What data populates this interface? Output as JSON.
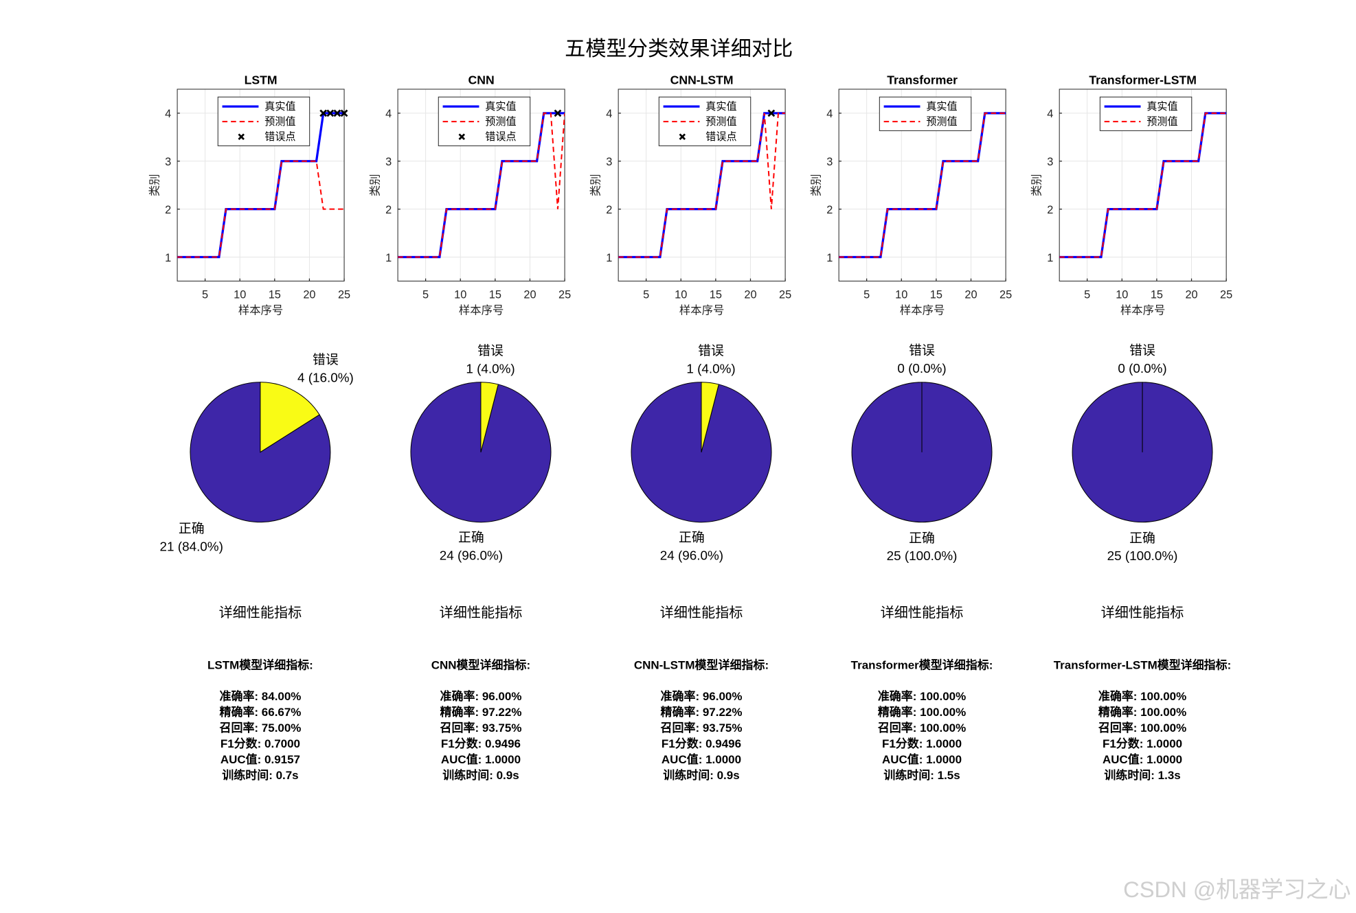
{
  "figure_title": "五模型分类效果详细对比",
  "watermark": "CSDN @机器学习之心",
  "chart_data": [
    {
      "type": "line",
      "title": "LSTM",
      "xlabel": "样本序号",
      "ylabel": "类别",
      "x": [
        1,
        2,
        3,
        4,
        5,
        6,
        7,
        8,
        9,
        10,
        11,
        12,
        13,
        14,
        15,
        16,
        17,
        18,
        19,
        20,
        21,
        22,
        23,
        24,
        25
      ],
      "xlim": [
        1,
        25
      ],
      "xticks": [
        5,
        10,
        15,
        20,
        25
      ],
      "ylim": [
        0.5,
        4.5
      ],
      "yticks": [
        1,
        2,
        3,
        4
      ],
      "grid": true,
      "legend": "upper right",
      "series": [
        {
          "name": "真实值",
          "color": "#0000ff",
          "line_style": "solid",
          "values": [
            1,
            1,
            1,
            1,
            1,
            1,
            1,
            2,
            2,
            2,
            2,
            2,
            2,
            2,
            2,
            3,
            3,
            3,
            3,
            3,
            3,
            4,
            4,
            4,
            4
          ]
        },
        {
          "name": "预测值",
          "color": "#ff0000",
          "line_style": "dashed",
          "values": [
            1,
            1,
            1,
            1,
            1,
            1,
            1,
            2,
            2,
            2,
            2,
            2,
            2,
            2,
            2,
            3,
            3,
            3,
            3,
            3,
            3,
            2,
            2,
            2,
            2
          ]
        },
        {
          "name": "错误点",
          "color": "#000000",
          "marker": "x",
          "values": [
            null,
            null,
            null,
            null,
            null,
            null,
            null,
            null,
            null,
            null,
            null,
            null,
            null,
            null,
            null,
            null,
            null,
            null,
            null,
            null,
            null,
            4,
            4,
            4,
            4
          ]
        }
      ]
    },
    {
      "type": "line",
      "title": "CNN",
      "xlabel": "样本序号",
      "ylabel": "类别",
      "x": [
        1,
        2,
        3,
        4,
        5,
        6,
        7,
        8,
        9,
        10,
        11,
        12,
        13,
        14,
        15,
        16,
        17,
        18,
        19,
        20,
        21,
        22,
        23,
        24,
        25
      ],
      "xlim": [
        1,
        25
      ],
      "xticks": [
        5,
        10,
        15,
        20,
        25
      ],
      "ylim": [
        0.5,
        4.5
      ],
      "yticks": [
        1,
        2,
        3,
        4
      ],
      "grid": true,
      "legend": "upper right",
      "series": [
        {
          "name": "真实值",
          "color": "#0000ff",
          "line_style": "solid",
          "values": [
            1,
            1,
            1,
            1,
            1,
            1,
            1,
            2,
            2,
            2,
            2,
            2,
            2,
            2,
            2,
            3,
            3,
            3,
            3,
            3,
            3,
            4,
            4,
            4,
            4
          ]
        },
        {
          "name": "预测值",
          "color": "#ff0000",
          "line_style": "dashed",
          "values": [
            1,
            1,
            1,
            1,
            1,
            1,
            1,
            2,
            2,
            2,
            2,
            2,
            2,
            2,
            2,
            3,
            3,
            3,
            3,
            3,
            3,
            4,
            4,
            2,
            4
          ]
        },
        {
          "name": "错误点",
          "color": "#000000",
          "marker": "x",
          "values": [
            null,
            null,
            null,
            null,
            null,
            null,
            null,
            null,
            null,
            null,
            null,
            null,
            null,
            null,
            null,
            null,
            null,
            null,
            null,
            null,
            null,
            null,
            null,
            4,
            null
          ]
        }
      ]
    },
    {
      "type": "line",
      "title": "CNN-LSTM",
      "xlabel": "样本序号",
      "ylabel": "类别",
      "x": [
        1,
        2,
        3,
        4,
        5,
        6,
        7,
        8,
        9,
        10,
        11,
        12,
        13,
        14,
        15,
        16,
        17,
        18,
        19,
        20,
        21,
        22,
        23,
        24,
        25
      ],
      "xlim": [
        1,
        25
      ],
      "xticks": [
        5,
        10,
        15,
        20,
        25
      ],
      "ylim": [
        0.5,
        4.5
      ],
      "yticks": [
        1,
        2,
        3,
        4
      ],
      "grid": true,
      "legend": "upper right",
      "series": [
        {
          "name": "真实值",
          "color": "#0000ff",
          "line_style": "solid",
          "values": [
            1,
            1,
            1,
            1,
            1,
            1,
            1,
            2,
            2,
            2,
            2,
            2,
            2,
            2,
            2,
            3,
            3,
            3,
            3,
            3,
            3,
            4,
            4,
            4,
            4
          ]
        },
        {
          "name": "预测值",
          "color": "#ff0000",
          "line_style": "dashed",
          "values": [
            1,
            1,
            1,
            1,
            1,
            1,
            1,
            2,
            2,
            2,
            2,
            2,
            2,
            2,
            2,
            3,
            3,
            3,
            3,
            3,
            3,
            4,
            2,
            4,
            4
          ]
        },
        {
          "name": "错误点",
          "color": "#000000",
          "marker": "x",
          "values": [
            null,
            null,
            null,
            null,
            null,
            null,
            null,
            null,
            null,
            null,
            null,
            null,
            null,
            null,
            null,
            null,
            null,
            null,
            null,
            null,
            null,
            null,
            4,
            null,
            null
          ]
        }
      ]
    },
    {
      "type": "line",
      "title": "Transformer",
      "xlabel": "样本序号",
      "ylabel": "类别",
      "x": [
        1,
        2,
        3,
        4,
        5,
        6,
        7,
        8,
        9,
        10,
        11,
        12,
        13,
        14,
        15,
        16,
        17,
        18,
        19,
        20,
        21,
        22,
        23,
        24,
        25
      ],
      "xlim": [
        1,
        25
      ],
      "xticks": [
        5,
        10,
        15,
        20,
        25
      ],
      "ylim": [
        0.5,
        4.5
      ],
      "yticks": [
        1,
        2,
        3,
        4
      ],
      "grid": true,
      "legend": "upper right",
      "series": [
        {
          "name": "真实值",
          "color": "#0000ff",
          "line_style": "solid",
          "values": [
            1,
            1,
            1,
            1,
            1,
            1,
            1,
            2,
            2,
            2,
            2,
            2,
            2,
            2,
            2,
            3,
            3,
            3,
            3,
            3,
            3,
            4,
            4,
            4,
            4
          ]
        },
        {
          "name": "预测值",
          "color": "#ff0000",
          "line_style": "dashed",
          "values": [
            1,
            1,
            1,
            1,
            1,
            1,
            1,
            2,
            2,
            2,
            2,
            2,
            2,
            2,
            2,
            3,
            3,
            3,
            3,
            3,
            3,
            4,
            4,
            4,
            4
          ]
        }
      ]
    },
    {
      "type": "line",
      "title": "Transformer-LSTM",
      "xlabel": "样本序号",
      "ylabel": "类别",
      "x": [
        1,
        2,
        3,
        4,
        5,
        6,
        7,
        8,
        9,
        10,
        11,
        12,
        13,
        14,
        15,
        16,
        17,
        18,
        19,
        20,
        21,
        22,
        23,
        24,
        25
      ],
      "xlim": [
        1,
        25
      ],
      "xticks": [
        5,
        10,
        15,
        20,
        25
      ],
      "ylim": [
        0.5,
        4.5
      ],
      "yticks": [
        1,
        2,
        3,
        4
      ],
      "grid": true,
      "legend": "upper right",
      "series": [
        {
          "name": "真实值",
          "color": "#0000ff",
          "line_style": "solid",
          "values": [
            1,
            1,
            1,
            1,
            1,
            1,
            1,
            2,
            2,
            2,
            2,
            2,
            2,
            2,
            2,
            3,
            3,
            3,
            3,
            3,
            3,
            4,
            4,
            4,
            4
          ]
        },
        {
          "name": "预测值",
          "color": "#ff0000",
          "line_style": "dashed",
          "values": [
            1,
            1,
            1,
            1,
            1,
            1,
            1,
            2,
            2,
            2,
            2,
            2,
            2,
            2,
            2,
            3,
            3,
            3,
            3,
            3,
            3,
            4,
            4,
            4,
            4
          ]
        }
      ]
    },
    {
      "type": "pie",
      "categories": [
        "正确",
        "错误"
      ],
      "values": [
        21,
        4
      ],
      "value_labels": [
        "21 (84.0%)",
        "4 (16.0%)"
      ],
      "colors": [
        "#3e26a8",
        "#f9fb15"
      ]
    },
    {
      "type": "pie",
      "categories": [
        "正确",
        "错误"
      ],
      "values": [
        24,
        1
      ],
      "value_labels": [
        "24 (96.0%)",
        "1 (4.0%)"
      ],
      "colors": [
        "#3e26a8",
        "#f9fb15"
      ]
    },
    {
      "type": "pie",
      "categories": [
        "正确",
        "错误"
      ],
      "values": [
        24,
        1
      ],
      "value_labels": [
        "24 (96.0%)",
        "1 (4.0%)"
      ],
      "colors": [
        "#3e26a8",
        "#f9fb15"
      ]
    },
    {
      "type": "pie",
      "categories": [
        "正确",
        "错误"
      ],
      "values": [
        25,
        0
      ],
      "value_labels": [
        "25 (100.0%)",
        "0 (0.0%)"
      ],
      "colors": [
        "#3e26a8",
        "#f9fb15"
      ]
    },
    {
      "type": "pie",
      "categories": [
        "正确",
        "错误"
      ],
      "values": [
        25,
        0
      ],
      "value_labels": [
        "25 (100.0%)",
        "0 (0.0%)"
      ],
      "colors": [
        "#3e26a8",
        "#f9fb15"
      ]
    }
  ],
  "metrics_panels": [
    {
      "heading": "详细性能指标",
      "title": "LSTM模型详细指标:",
      "lines": [
        "准确率: 84.00%",
        "精确率: 66.67%",
        "召回率: 75.00%",
        "F1分数: 0.7000",
        "AUC值: 0.9157",
        "训练时间: 0.7s"
      ]
    },
    {
      "heading": "详细性能指标",
      "title": "CNN模型详细指标:",
      "lines": [
        "准确率: 96.00%",
        "精确率: 97.22%",
        "召回率: 93.75%",
        "F1分数: 0.9496",
        "AUC值: 1.0000",
        "训练时间: 0.9s"
      ]
    },
    {
      "heading": "详细性能指标",
      "title": "CNN-LSTM模型详细指标:",
      "lines": [
        "准确率: 96.00%",
        "精确率: 97.22%",
        "召回率: 93.75%",
        "F1分数: 0.9496",
        "AUC值: 1.0000",
        "训练时间: 0.9s"
      ]
    },
    {
      "heading": "详细性能指标",
      "title": "Transformer模型详细指标:",
      "lines": [
        "准确率: 100.00%",
        "精确率: 100.00%",
        "召回率: 100.00%",
        "F1分数: 1.0000",
        "AUC值: 1.0000",
        "训练时间: 1.5s"
      ]
    },
    {
      "heading": "详细性能指标",
      "title": "Transformer-LSTM模型详细指标:",
      "lines": [
        "准确率: 100.00%",
        "精确率: 100.00%",
        "召回率: 100.00%",
        "F1分数: 1.0000",
        "AUC值: 1.0000",
        "训练时间: 1.3s"
      ]
    }
  ]
}
